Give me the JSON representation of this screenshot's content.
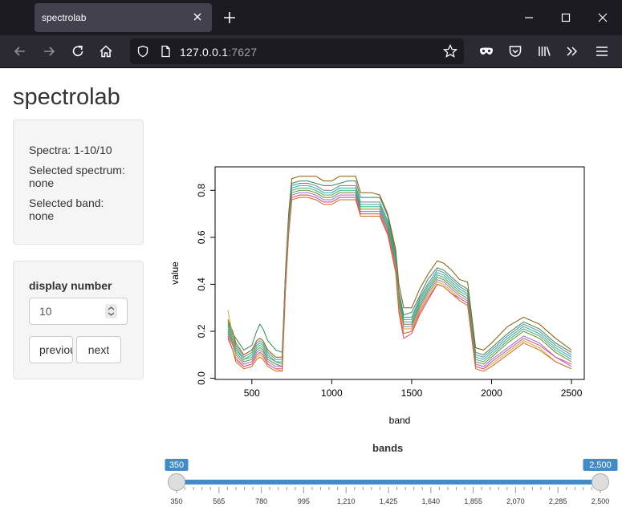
{
  "browser": {
    "tab_title": "spectrolab",
    "url_host": "127.0.0.1",
    "url_port": ":7627"
  },
  "app": {
    "title": "spectrolab",
    "info": {
      "spectra": "Spectra: 1-10/10",
      "selected_spectrum_label": "Selected spectrum:",
      "selected_spectrum_value": "none",
      "selected_band_label": "Selected band:",
      "selected_band_value": "none"
    },
    "controls": {
      "display_number_label": "display number",
      "display_number_value": "10",
      "previous_label": "previous",
      "next_label": "next"
    },
    "slider": {
      "label": "bands",
      "min": 350,
      "max": 2500,
      "from": 350,
      "to": 2500,
      "from_label": "350",
      "to_label": "2,500",
      "ticks": [
        "350",
        "565",
        "780",
        "995",
        "1,210",
        "1,425",
        "1,640",
        "1,855",
        "2,070",
        "2,285",
        "2,500"
      ],
      "bar_color": "#428bca"
    }
  },
  "chart_data": {
    "type": "line",
    "xlabel": "band",
    "ylabel": "value",
    "xlim": [
      270,
      2580
    ],
    "ylim": [
      -0.005,
      0.9
    ],
    "xticks": [
      500,
      1000,
      1500,
      2000,
      2500
    ],
    "yticks": [
      0.0,
      0.2,
      0.4,
      0.6,
      0.8
    ],
    "ytick_labels": [
      "0.0",
      "0.2",
      "0.4",
      "0.6",
      "0.8"
    ],
    "x": [
      350,
      380,
      400,
      450,
      500,
      530,
      550,
      570,
      600,
      650,
      690,
      710,
      730,
      750,
      800,
      850,
      900,
      950,
      1000,
      1050,
      1100,
      1150,
      1180,
      1250,
      1300,
      1350,
      1400,
      1420,
      1450,
      1500,
      1550,
      1600,
      1660,
      1700,
      1750,
      1800,
      1850,
      1900,
      1950,
      2000,
      2100,
      2200,
      2300,
      2400,
      2500
    ],
    "series": [
      {
        "color": "#8B5A00",
        "values": [
          0.25,
          0.2,
          0.15,
          0.1,
          0.12,
          0.16,
          0.17,
          0.16,
          0.12,
          0.09,
          0.09,
          0.45,
          0.7,
          0.85,
          0.86,
          0.86,
          0.86,
          0.84,
          0.84,
          0.86,
          0.86,
          0.86,
          0.79,
          0.79,
          0.78,
          0.7,
          0.55,
          0.4,
          0.3,
          0.3,
          0.38,
          0.44,
          0.5,
          0.49,
          0.46,
          0.42,
          0.41,
          0.13,
          0.12,
          0.15,
          0.22,
          0.26,
          0.23,
          0.17,
          0.12
        ]
      },
      {
        "color": "#2E8B57",
        "values": [
          0.24,
          0.19,
          0.17,
          0.12,
          0.14,
          0.2,
          0.23,
          0.21,
          0.16,
          0.12,
          0.11,
          0.44,
          0.68,
          0.83,
          0.84,
          0.84,
          0.83,
          0.82,
          0.82,
          0.83,
          0.84,
          0.84,
          0.77,
          0.77,
          0.77,
          0.69,
          0.53,
          0.37,
          0.27,
          0.28,
          0.35,
          0.42,
          0.47,
          0.46,
          0.43,
          0.4,
          0.38,
          0.11,
          0.1,
          0.13,
          0.19,
          0.24,
          0.21,
          0.15,
          0.11
        ]
      },
      {
        "color": "#708090",
        "values": [
          0.23,
          0.18,
          0.14,
          0.09,
          0.11,
          0.15,
          0.16,
          0.15,
          0.11,
          0.08,
          0.08,
          0.43,
          0.67,
          0.82,
          0.83,
          0.83,
          0.82,
          0.8,
          0.8,
          0.82,
          0.82,
          0.82,
          0.75,
          0.75,
          0.75,
          0.67,
          0.52,
          0.36,
          0.26,
          0.26,
          0.34,
          0.4,
          0.46,
          0.45,
          0.42,
          0.39,
          0.37,
          0.1,
          0.09,
          0.12,
          0.18,
          0.23,
          0.2,
          0.14,
          0.1
        ]
      },
      {
        "color": "#20B2AA",
        "values": [
          0.22,
          0.17,
          0.13,
          0.08,
          0.1,
          0.14,
          0.15,
          0.14,
          0.1,
          0.07,
          0.07,
          0.42,
          0.66,
          0.81,
          0.82,
          0.82,
          0.81,
          0.79,
          0.79,
          0.81,
          0.81,
          0.81,
          0.74,
          0.74,
          0.74,
          0.66,
          0.51,
          0.35,
          0.25,
          0.25,
          0.33,
          0.39,
          0.45,
          0.44,
          0.41,
          0.38,
          0.36,
          0.09,
          0.08,
          0.11,
          0.17,
          0.22,
          0.19,
          0.13,
          0.09
        ]
      },
      {
        "color": "#3CB371",
        "values": [
          0.21,
          0.16,
          0.12,
          0.08,
          0.09,
          0.13,
          0.14,
          0.13,
          0.09,
          0.07,
          0.06,
          0.41,
          0.65,
          0.8,
          0.81,
          0.81,
          0.8,
          0.78,
          0.78,
          0.8,
          0.8,
          0.8,
          0.73,
          0.73,
          0.73,
          0.65,
          0.5,
          0.34,
          0.24,
          0.24,
          0.32,
          0.38,
          0.44,
          0.43,
          0.4,
          0.37,
          0.35,
          0.08,
          0.07,
          0.1,
          0.16,
          0.21,
          0.18,
          0.12,
          0.08
        ]
      },
      {
        "color": "#6B8E23",
        "values": [
          0.2,
          0.15,
          0.11,
          0.07,
          0.08,
          0.12,
          0.13,
          0.12,
          0.08,
          0.06,
          0.05,
          0.4,
          0.64,
          0.79,
          0.8,
          0.8,
          0.79,
          0.77,
          0.77,
          0.79,
          0.79,
          0.79,
          0.72,
          0.72,
          0.72,
          0.64,
          0.49,
          0.33,
          0.23,
          0.23,
          0.31,
          0.37,
          0.43,
          0.42,
          0.39,
          0.36,
          0.34,
          0.07,
          0.06,
          0.09,
          0.15,
          0.2,
          0.17,
          0.11,
          0.07
        ]
      },
      {
        "color": "#9370DB",
        "values": [
          0.19,
          0.14,
          0.1,
          0.06,
          0.07,
          0.11,
          0.12,
          0.11,
          0.07,
          0.05,
          0.05,
          0.39,
          0.63,
          0.78,
          0.79,
          0.79,
          0.78,
          0.76,
          0.76,
          0.78,
          0.78,
          0.78,
          0.71,
          0.71,
          0.71,
          0.63,
          0.48,
          0.32,
          0.22,
          0.22,
          0.3,
          0.36,
          0.42,
          0.41,
          0.38,
          0.35,
          0.33,
          0.06,
          0.05,
          0.08,
          0.13,
          0.18,
          0.15,
          0.09,
          0.05
        ]
      },
      {
        "color": "#DAA520",
        "values": [
          0.29,
          0.18,
          0.09,
          0.05,
          0.06,
          0.09,
          0.1,
          0.09,
          0.06,
          0.04,
          0.03,
          0.38,
          0.62,
          0.77,
          0.78,
          0.78,
          0.77,
          0.75,
          0.75,
          0.77,
          0.77,
          0.77,
          0.7,
          0.7,
          0.7,
          0.62,
          0.47,
          0.31,
          0.21,
          0.21,
          0.29,
          0.35,
          0.41,
          0.4,
          0.37,
          0.34,
          0.32,
          0.05,
          0.04,
          0.06,
          0.11,
          0.16,
          0.13,
          0.07,
          0.04
        ]
      },
      {
        "color": "#E8488B",
        "values": [
          0.18,
          0.12,
          0.08,
          0.05,
          0.06,
          0.1,
          0.11,
          0.1,
          0.06,
          0.04,
          0.04,
          0.38,
          0.62,
          0.77,
          0.78,
          0.78,
          0.77,
          0.75,
          0.75,
          0.77,
          0.77,
          0.77,
          0.7,
          0.7,
          0.7,
          0.62,
          0.46,
          0.28,
          0.17,
          0.19,
          0.27,
          0.33,
          0.4,
          0.39,
          0.36,
          0.34,
          0.32,
          0.05,
          0.04,
          0.07,
          0.12,
          0.17,
          0.14,
          0.09,
          0.06
        ]
      },
      {
        "color": "#D2691E",
        "values": [
          0.17,
          0.12,
          0.07,
          0.04,
          0.05,
          0.08,
          0.09,
          0.08,
          0.05,
          0.03,
          0.03,
          0.37,
          0.61,
          0.76,
          0.77,
          0.77,
          0.76,
          0.74,
          0.74,
          0.76,
          0.76,
          0.76,
          0.69,
          0.69,
          0.69,
          0.61,
          0.45,
          0.29,
          0.19,
          0.2,
          0.28,
          0.34,
          0.4,
          0.39,
          0.36,
          0.33,
          0.31,
          0.04,
          0.03,
          0.05,
          0.1,
          0.15,
          0.12,
          0.07,
          0.04
        ]
      }
    ]
  }
}
